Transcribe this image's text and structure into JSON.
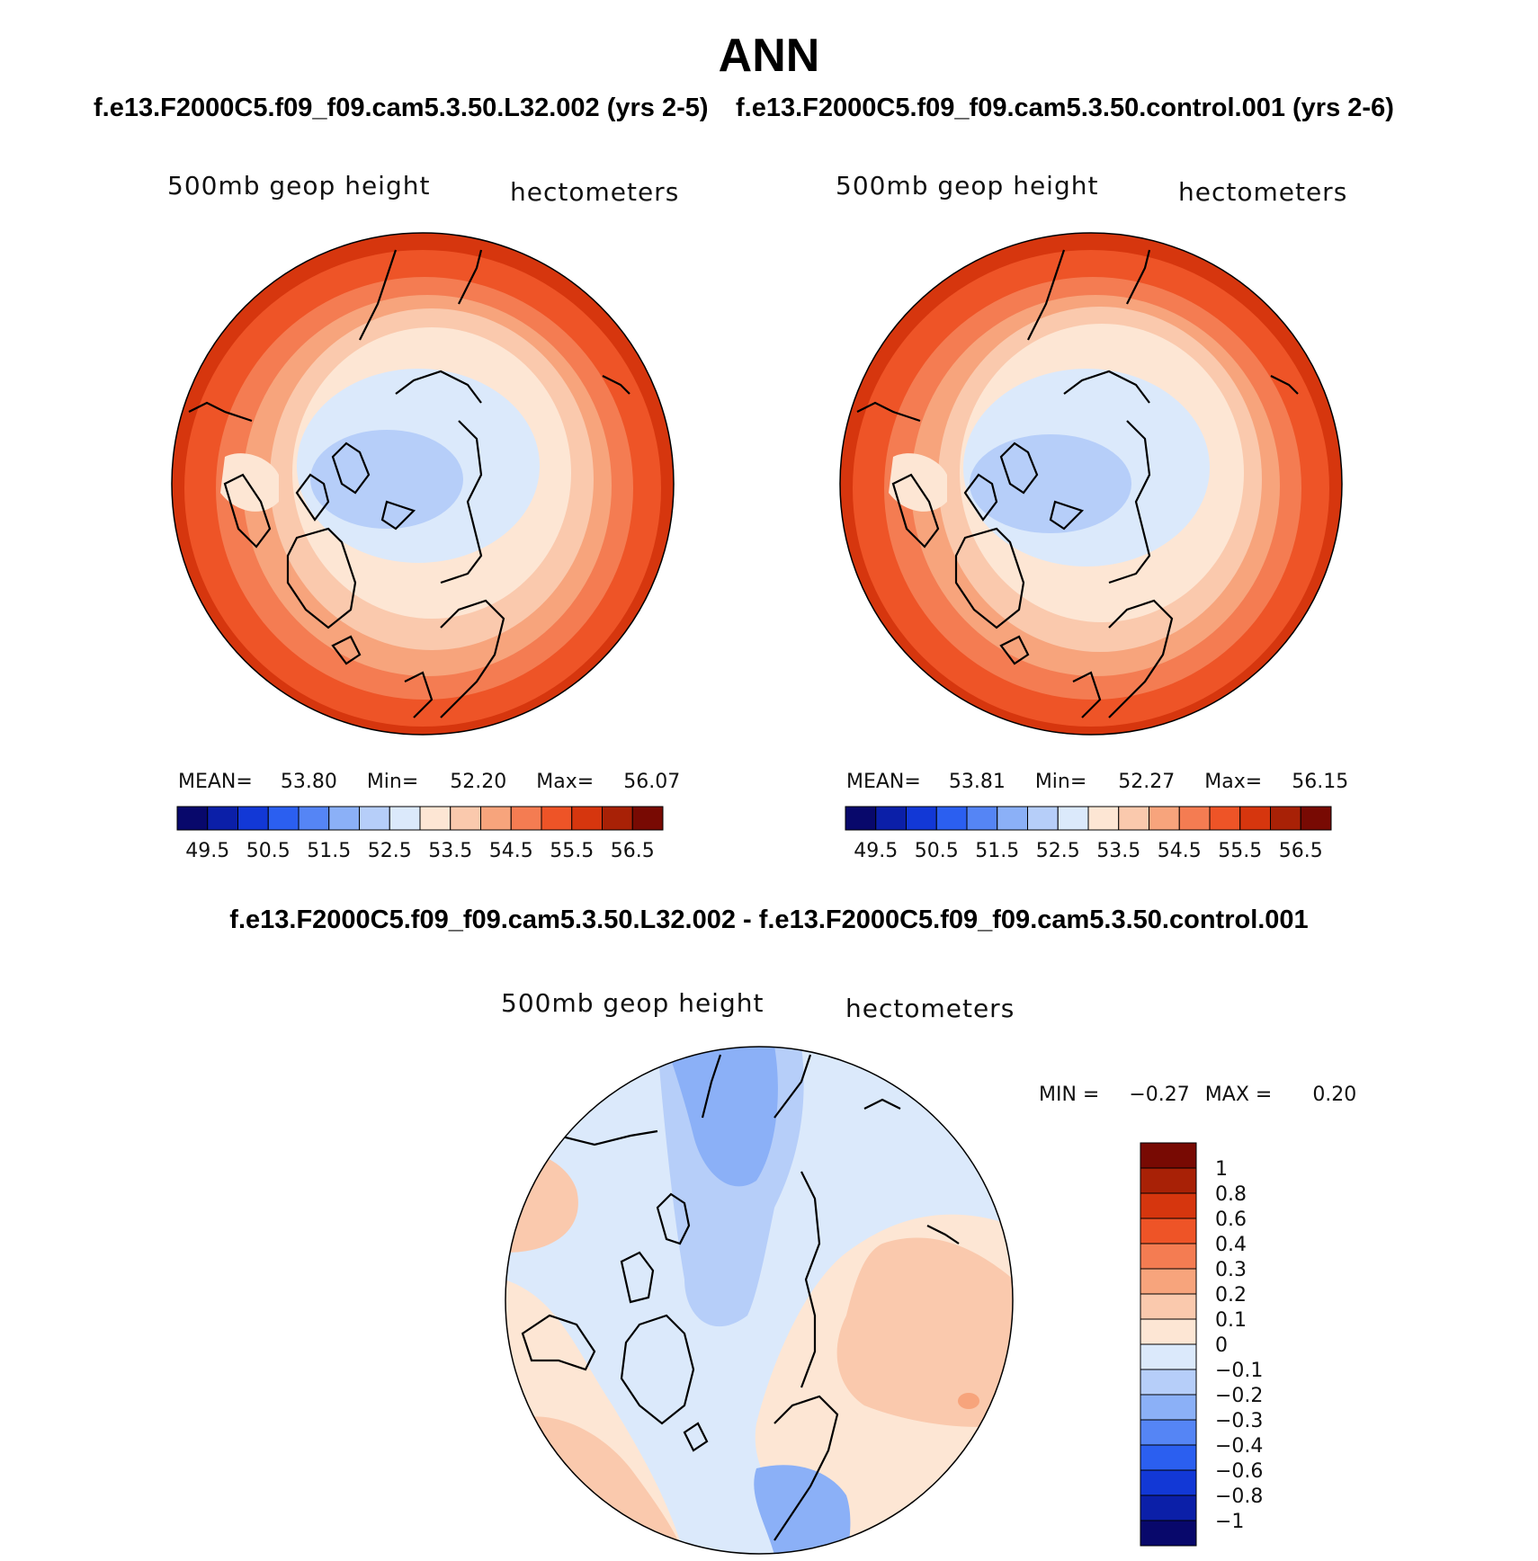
{
  "figure_title": "ANN",
  "left_panel": {
    "case_title": "f.e13.F2000C5.f09_f09.cam5.3.50.L32.002 (yrs 2-5)",
    "variable": "500mb geop height",
    "units": "hectometers",
    "mean_label": "MEAN=",
    "mean": "53.80",
    "min_label": "Min=",
    "min": "52.20",
    "max_label": "Max=",
    "max": "56.07"
  },
  "right_panel": {
    "case_title": "f.e13.F2000C5.f09_f09.cam5.3.50.control.001 (yrs 2-6)",
    "variable": "500mb geop height",
    "units": "hectometers",
    "mean_label": "MEAN=",
    "mean": "53.81",
    "min_label": "Min=",
    "min": "52.27",
    "max_label": "Max=",
    "max": "56.15"
  },
  "diff_panel": {
    "title": "f.e13.F2000C5.f09_f09.cam5.3.50.L32.002 - f.e13.F2000C5.f09_f09.cam5.3.50.control.001",
    "variable": "500mb geop height",
    "units": "hectometers",
    "min_label": "MIN =",
    "min": "−0.27",
    "max_label": "MAX =",
    "max": "0.20"
  },
  "colorbars": {
    "abs_colors": [
      "#08086b",
      "#0b1fa8",
      "#1238d6",
      "#2b5ff0",
      "#5585f5",
      "#8bb0f7",
      "#b6cef9",
      "#dbe9fb",
      "#fde6d4",
      "#fac9ad",
      "#f7a47c",
      "#f47c52",
      "#ee5427",
      "#d6360e",
      "#a82106",
      "#780a03"
    ],
    "abs_labels": [
      "49.5",
      "50.5",
      "51.5",
      "52.5",
      "53.5",
      "54.5",
      "55.5",
      "56.5"
    ],
    "diff_colors": [
      "#08086b",
      "#0b1fa8",
      "#1238d6",
      "#2b5ff0",
      "#5585f5",
      "#8bb0f7",
      "#b6cef9",
      "#dbe9fb",
      "#fde6d4",
      "#fac9ad",
      "#f7a47c",
      "#f47c52",
      "#ee5427",
      "#d6360e",
      "#a82106",
      "#780a03"
    ],
    "diff_labels": [
      "1",
      "0.8",
      "0.6",
      "0.4",
      "0.3",
      "0.2",
      "0.1",
      "0",
      "−0.1",
      "−0.2",
      "−0.3",
      "−0.4",
      "−0.6",
      "−0.8",
      "−1"
    ]
  }
}
